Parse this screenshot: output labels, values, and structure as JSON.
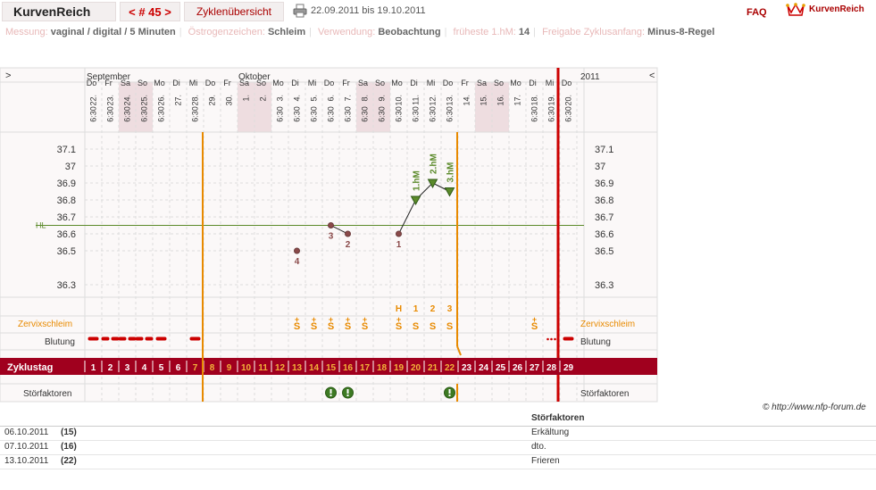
{
  "header": {
    "app_title": "KurvenReich",
    "cycle_tab": "< # 45 >",
    "overview_tab": "Zyklenübersicht",
    "date_range": "22.09.2011 bis 19.10.2011",
    "faq": "FAQ",
    "brand": "KurvenReich"
  },
  "info": {
    "messung_label": "Messung:",
    "messung_value": "vaginal / digital / 5 Minuten",
    "oestrogen_label": "Östrogenzeichen:",
    "oestrogen_value": "Schleim",
    "verwendung_label": "Verwendung:",
    "verwendung_value": "Beobachtung",
    "hm_label": "früheste 1.hM:",
    "hm_value": "14",
    "freigabe_label": "Freigabe Zyklusanfang:",
    "freigabe_value": "Minus-8-Regel"
  },
  "chart": {
    "nav_prev": ">",
    "nav_next": "<",
    "year": "2011",
    "month_1": "September",
    "month_2": "Oktober",
    "hl_label": "HL",
    "days": [
      {
        "date": "22.",
        "wd": "Do",
        "time": "6:30"
      },
      {
        "date": "23.",
        "wd": "Fr",
        "time": "6:30"
      },
      {
        "date": "24.",
        "wd": "Sa",
        "time": "6:30"
      },
      {
        "date": "25.",
        "wd": "So",
        "time": "6:30"
      },
      {
        "date": "26.",
        "wd": "Mo",
        "time": "6:30"
      },
      {
        "date": "27.",
        "wd": "Di",
        "time": ""
      },
      {
        "date": "28.",
        "wd": "Mi",
        "time": "6:30"
      },
      {
        "date": "29.",
        "wd": "Do",
        "time": ""
      },
      {
        "date": "30.",
        "wd": "Fr",
        "time": ""
      },
      {
        "date": "1.",
        "wd": "Sa",
        "time": ""
      },
      {
        "date": "2.",
        "wd": "So",
        "time": ""
      },
      {
        "date": "3.",
        "wd": "Mo",
        "time": "6:30"
      },
      {
        "date": "4.",
        "wd": "Di",
        "time": "6:30"
      },
      {
        "date": "5.",
        "wd": "Mi",
        "time": "6:30"
      },
      {
        "date": "6.",
        "wd": "Do",
        "time": "6:30"
      },
      {
        "date": "7.",
        "wd": "Fr",
        "time": "6:30"
      },
      {
        "date": "8.",
        "wd": "Sa",
        "time": "6:30"
      },
      {
        "date": "9.",
        "wd": "So",
        "time": "6:30"
      },
      {
        "date": "10.",
        "wd": "Mo",
        "time": "6:30"
      },
      {
        "date": "11.",
        "wd": "Di",
        "time": "6:30"
      },
      {
        "date": "12.",
        "wd": "Mi",
        "time": "6:30"
      },
      {
        "date": "13.",
        "wd": "Do",
        "time": "6:30"
      },
      {
        "date": "14.",
        "wd": "Fr",
        "time": ""
      },
      {
        "date": "15.",
        "wd": "Sa",
        "time": ""
      },
      {
        "date": "16.",
        "wd": "So",
        "time": ""
      },
      {
        "date": "17.",
        "wd": "Mo",
        "time": ""
      },
      {
        "date": "18.",
        "wd": "Di",
        "time": "6:30"
      },
      {
        "date": "19.",
        "wd": "Mi",
        "time": "6:30"
      },
      {
        "date": "20.",
        "wd": "Do",
        "time": "6:30"
      }
    ],
    "weekend_days": [
      2,
      3,
      9,
      10,
      16,
      17,
      23,
      24
    ],
    "temp_ticks": [
      "37.1",
      "37",
      "36.9",
      "36.8",
      "36.7",
      "36.6",
      "36.5",
      "36.3"
    ],
    "temp_tick_values": [
      37.1,
      37.0,
      36.9,
      36.8,
      36.7,
      36.6,
      36.5,
      36.3
    ],
    "hl_value": 36.65,
    "temps": [
      {
        "day": 13,
        "value": 36.5,
        "label": "4"
      },
      {
        "day": 15,
        "value": 36.65,
        "label": "3"
      },
      {
        "day": 16,
        "value": 36.6,
        "label": "2"
      },
      {
        "day": 19,
        "value": 36.6,
        "label": "1"
      },
      {
        "day": 20,
        "value": 36.8,
        "label": "1.hM"
      },
      {
        "day": 21,
        "value": 36.9,
        "label": "2.hM"
      },
      {
        "day": 22,
        "value": 36.85,
        "label": "3.hM"
      }
    ],
    "peak_labels": [
      {
        "day": 19,
        "text": "H"
      },
      {
        "day": 20,
        "text": "1"
      },
      {
        "day": 21,
        "text": "2"
      },
      {
        "day": 22,
        "text": "3"
      }
    ],
    "mucus_label": "Zervixschleim",
    "mucus": [
      {
        "day": 13,
        "text": "S",
        "plus": "+"
      },
      {
        "day": 14,
        "text": "S",
        "plus": "+"
      },
      {
        "day": 15,
        "text": "S",
        "plus": "+"
      },
      {
        "day": 16,
        "text": "S",
        "plus": "+"
      },
      {
        "day": 17,
        "text": "S",
        "plus": "+"
      },
      {
        "day": 19,
        "text": "S",
        "plus": "+"
      },
      {
        "day": 20,
        "text": "S",
        "plus": ""
      },
      {
        "day": 21,
        "text": "S",
        "plus": ""
      },
      {
        "day": 22,
        "text": "S",
        "plus": ""
      },
      {
        "day": 27,
        "text": "S",
        "plus": "+"
      }
    ],
    "bleeding_label": "Blutung",
    "bleeding": [
      {
        "day": 1,
        "type": "single"
      },
      {
        "day": 2,
        "type": "double"
      },
      {
        "day": 3,
        "type": "double"
      },
      {
        "day": 4,
        "type": "double"
      },
      {
        "day": 5,
        "type": "single"
      },
      {
        "day": 7,
        "type": "single"
      },
      {
        "day": 28,
        "type": "dots"
      },
      {
        "day": 29,
        "type": "single"
      }
    ],
    "cycle_day_label": "Zyklustag",
    "cycle_days": [
      "1",
      "2",
      "3",
      "4",
      "5",
      "6",
      "7",
      "8",
      "9",
      "10",
      "11",
      "12",
      "13",
      "14",
      "15",
      "16",
      "17",
      "18",
      "19",
      "20",
      "21",
      "22",
      "23",
      "24",
      "25",
      "26",
      "27",
      "28",
      "29"
    ],
    "disturb_label": "Störfaktoren",
    "disturb_days": [
      15,
      16,
      22
    ],
    "right_labels": {
      "mucus": "Zervixschleim",
      "bleeding": "Blutung",
      "disturb": "Störfaktoren"
    }
  },
  "footer": {
    "copyright": "© http://www.nfp-forum.de",
    "disturb_header": "Störfaktoren",
    "rows": [
      {
        "date": "06.10.2011",
        "day": "(15)",
        "text": "Erkältung"
      },
      {
        "date": "07.10.2011",
        "day": "(16)",
        "text": "dto."
      },
      {
        "date": "13.10.2011",
        "day": "(22)",
        "text": "Frieren"
      }
    ]
  },
  "colors": {
    "accent": "#a0001e",
    "orange": "#e88a00",
    "green": "#5b8a2a",
    "temp_dot": "#8a4a4a",
    "red_line": "#cc0000"
  }
}
